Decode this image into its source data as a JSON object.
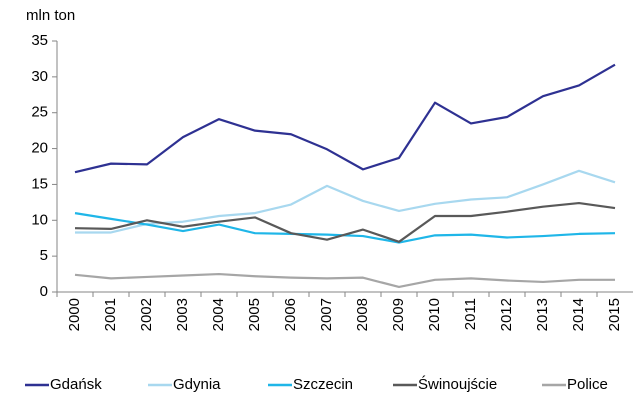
{
  "chart_data": {
    "type": "line",
    "y_axis_label": "mln ton",
    "categories": [
      "2000",
      "2001",
      "2002",
      "2003",
      "2004",
      "2005",
      "2006",
      "2007",
      "2008",
      "2009",
      "2010",
      "2011",
      "2012",
      "2013",
      "2014",
      "2015"
    ],
    "series": [
      {
        "name": "Gdańsk",
        "color": "#2e3192",
        "values": [
          16.7,
          17.9,
          17.8,
          21.6,
          24.1,
          22.5,
          22.0,
          19.9,
          17.1,
          18.7,
          26.4,
          23.5,
          24.4,
          27.3,
          28.8,
          31.7
        ]
      },
      {
        "name": "Gdynia",
        "color": "#a8d8ef",
        "values": [
          8.3,
          8.3,
          9.5,
          9.8,
          10.6,
          11.0,
          12.2,
          14.8,
          12.7,
          11.3,
          12.3,
          12.9,
          13.2,
          15.0,
          16.9,
          15.3
        ]
      },
      {
        "name": "Szczecin",
        "color": "#1fb6e8",
        "values": [
          11.0,
          10.2,
          9.4,
          8.5,
          9.4,
          8.2,
          8.1,
          8.0,
          7.8,
          6.9,
          7.9,
          8.0,
          7.6,
          7.8,
          8.1,
          8.2
        ]
      },
      {
        "name": "Świnoujście",
        "color": "#595959",
        "values": [
          8.9,
          8.8,
          10.0,
          9.1,
          9.8,
          10.4,
          8.2,
          7.3,
          8.7,
          7.0,
          10.6,
          10.6,
          11.2,
          11.9,
          12.4,
          11.7
        ]
      },
      {
        "name": "Police",
        "color": "#a6a6a6",
        "values": [
          2.4,
          1.9,
          2.1,
          2.3,
          2.5,
          2.2,
          2.0,
          1.9,
          2.0,
          0.7,
          1.7,
          1.9,
          1.6,
          1.4,
          1.7,
          1.7
        ]
      }
    ],
    "ylim": [
      0,
      35
    ],
    "yticks": [
      0,
      5,
      10,
      15,
      20,
      25,
      30,
      35
    ],
    "grid": false,
    "legend": "bottom"
  }
}
